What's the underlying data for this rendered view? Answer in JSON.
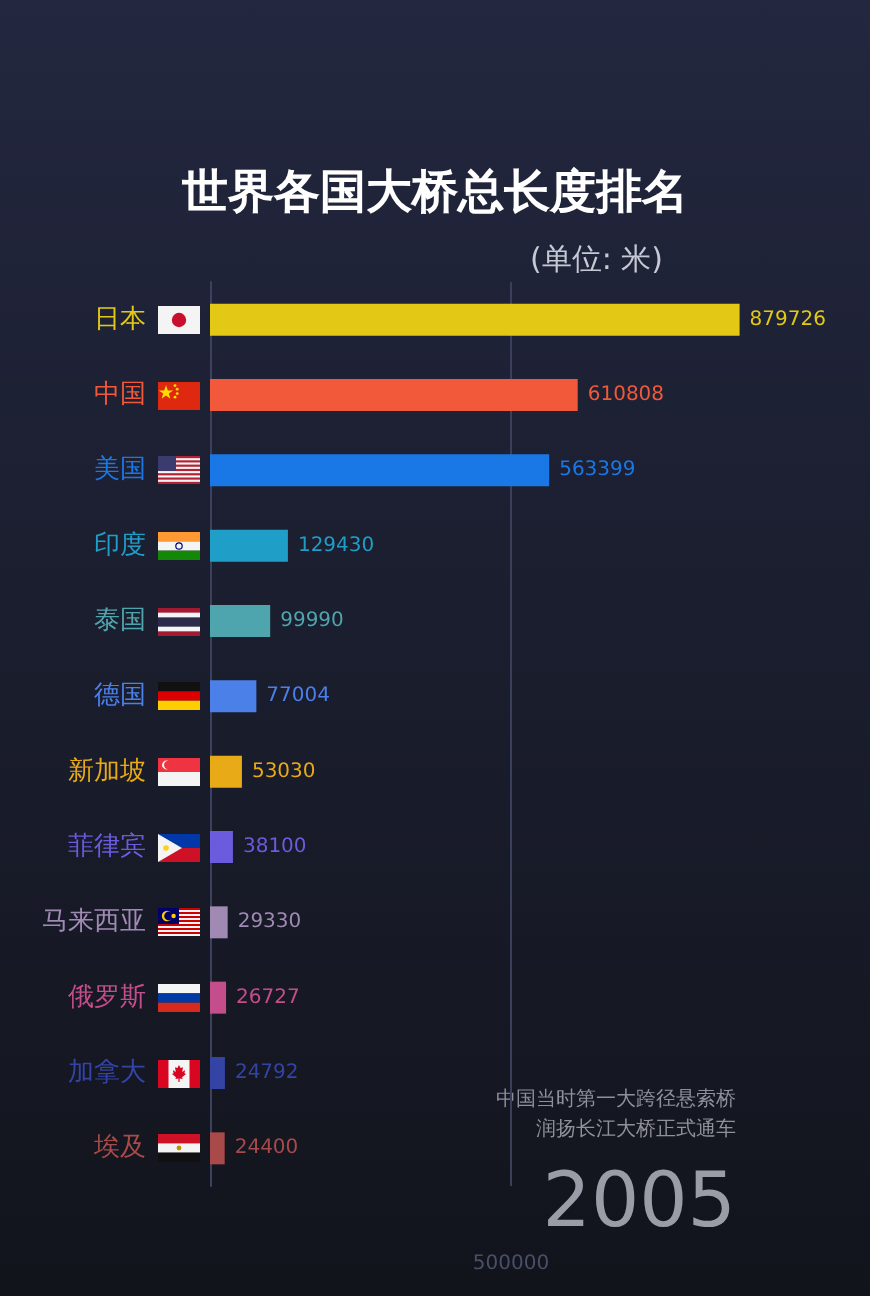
{
  "chart_data": {
    "type": "bar",
    "orientation": "horizontal",
    "title": "世界各国大桥总长度排名",
    "subtitle": "(单位: 米)",
    "categories": [
      "日本",
      "中国",
      "美国",
      "印度",
      "泰国",
      "德国",
      "新加坡",
      "菲律宾",
      "马来西亚",
      "俄罗斯",
      "加拿大",
      "埃及"
    ],
    "values": [
      879726,
      610808,
      563399,
      129430,
      99990,
      77004,
      53030,
      38100,
      29330,
      26727,
      24792,
      24400
    ],
    "colors": [
      "#e3c916",
      "#f2593a",
      "#1a78e6",
      "#1f9ec8",
      "#4fa5ae",
      "#4b80e8",
      "#e8aa16",
      "#6a5cdc",
      "#a08ab4",
      "#c44d8c",
      "#3444a4",
      "#a84a4a"
    ],
    "tick_labels": "y",
    "data_labels": true,
    "ref_lines": [
      {
        "axis": "x",
        "value": 500000,
        "label": "500000",
        "color": "#3a3f5c"
      }
    ],
    "annotations": [
      "中国当时第一大跨径悬索桥",
      "润扬长江大桥正式通车",
      "2005"
    ]
  }
}
